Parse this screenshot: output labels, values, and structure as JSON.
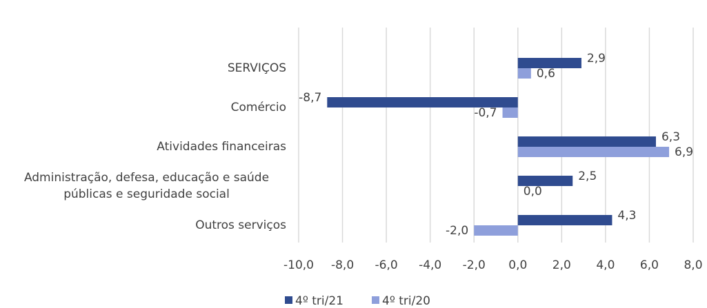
{
  "chart_data": {
    "type": "bar",
    "orientation": "horizontal",
    "categories": [
      "SERVIÇOS",
      "Comércio",
      "Atividades financeiras",
      "Administração, defesa, educação e saúde públicas e seguridade social",
      "Outros serviços"
    ],
    "series": [
      {
        "name": "4º tri/21",
        "color": "#2f4b8f",
        "values": [
          2.9,
          -8.7,
          6.3,
          2.5,
          4.3
        ],
        "value_labels": [
          "2,9",
          "-8,7",
          "6,3",
          "2,5",
          "4,3"
        ]
      },
      {
        "name": "4º tri/20",
        "color": "#8e9fdb",
        "values": [
          0.6,
          -0.7,
          6.9,
          0.0,
          -2.0
        ],
        "value_labels": [
          "0,6",
          "-0,7",
          "6,9",
          "0,0",
          "-2,0"
        ]
      }
    ],
    "xlim": [
      -10,
      8
    ],
    "xticks": [
      {
        "value": -10,
        "label": "-10,0"
      },
      {
        "value": -8,
        "label": "-8,0"
      },
      {
        "value": -6,
        "label": "-6,0"
      },
      {
        "value": -4,
        "label": "-4,0"
      },
      {
        "value": -2,
        "label": "-2,0"
      },
      {
        "value": 0,
        "label": "0,0"
      },
      {
        "value": 2,
        "label": "2,0"
      },
      {
        "value": 4,
        "label": "4,0"
      },
      {
        "value": 6,
        "label": "6,0"
      },
      {
        "value": 8,
        "label": "8,0"
      }
    ],
    "grid": true,
    "legend": "bottom"
  }
}
